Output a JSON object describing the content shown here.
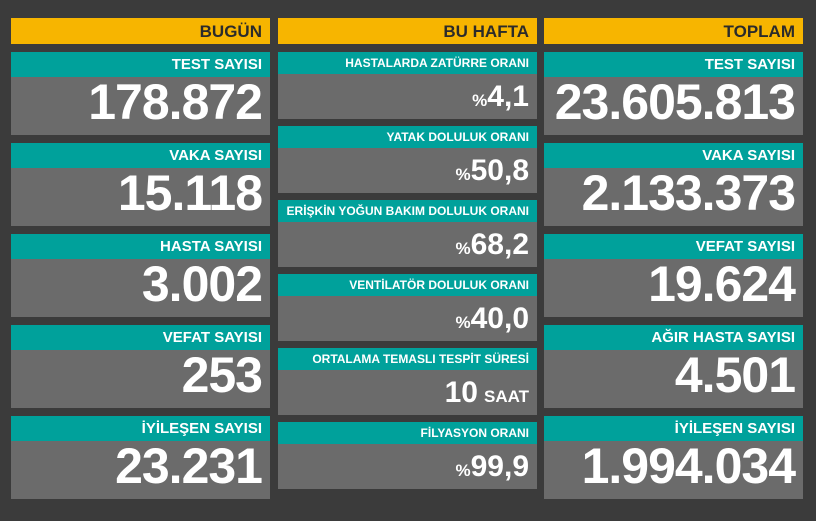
{
  "columns": [
    {
      "title": "BUGÜN",
      "cards": [
        {
          "label": "TEST SAYISI",
          "value": "178.872"
        },
        {
          "label": "VAKA SAYISI",
          "value": "15.118"
        },
        {
          "label": "HASTA SAYISI",
          "value": "3.002"
        },
        {
          "label": "VEFAT SAYISI",
          "value": "253"
        },
        {
          "label": "İYİLEŞEN SAYISI",
          "value": "23.231"
        }
      ]
    },
    {
      "title": "BU HAFTA",
      "cards": [
        {
          "label": "HASTALARDA ZATÜRRE ORANI",
          "prefix": "%",
          "value": "4,1"
        },
        {
          "label": "YATAK DOLULUK ORANI",
          "prefix": "%",
          "value": "50,8"
        },
        {
          "label": "ERİŞKİN YOĞUN BAKIM DOLULUK ORANI",
          "prefix": "%",
          "value": "68,2"
        },
        {
          "label": "VENTİLATÖR DOLULUK ORANI",
          "prefix": "%",
          "value": "40,0"
        },
        {
          "label": "ORTALAMA TEMASLI TESPİT SÜRESİ",
          "value": "10",
          "suffix": "SAAT"
        },
        {
          "label": "FİLYASYON ORANI",
          "prefix": "%",
          "value": "99,9"
        }
      ]
    },
    {
      "title": "TOPLAM",
      "cards": [
        {
          "label": "TEST SAYISI",
          "value": "23.605.813"
        },
        {
          "label": "VAKA SAYISI",
          "value": "2.133.373"
        },
        {
          "label": "VEFAT SAYISI",
          "value": "19.624"
        },
        {
          "label": "AĞIR HASTA SAYISI",
          "value": "4.501"
        },
        {
          "label": "İYİLEŞEN SAYISI",
          "value": "1.994.034"
        }
      ]
    }
  ]
}
